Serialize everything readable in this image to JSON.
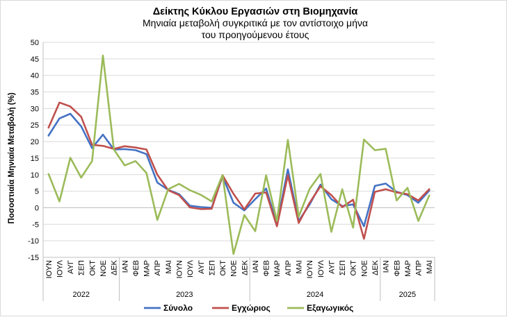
{
  "chart_data": {
    "type": "line",
    "title": "Δείκτης Κύκλου Εργασιών στη Βιομηχανία",
    "subtitle_lines": [
      "Μηνιαία μεταβολή συγκριτικά με τον αντίστοιχο μήνα",
      "του προηγούμενου έτους"
    ],
    "ylabel": "Ποσοστιαία Μηνιαία Μεταβολή (%)",
    "ylim": [
      -15,
      50
    ],
    "yticks": [
      "-15",
      "-10",
      "-5",
      "0",
      "5",
      "10",
      "15",
      "20",
      "25",
      "30",
      "35",
      "40",
      "45",
      "50"
    ],
    "grid": true,
    "legend_position": "bottom",
    "categories": [
      "ΙΟΥΝ",
      "ΙΟΥΛ",
      "ΑΥΓ",
      "ΣΕΠ",
      "ΟΚΤ",
      "ΝΟΕ",
      "ΔΕΚ",
      "ΙΑΝ",
      "ΦΕΒ",
      "ΜΑΡ",
      "ΑΠΡ",
      "ΜΑΙ",
      "ΙΟΥΝ",
      "ΙΟΥΛ",
      "ΑΥΓ",
      "ΣΕΠ",
      "ΟΚΤ",
      "ΝΟΕ",
      "ΔΕΚ",
      "ΙΑΝ",
      "ΦΕΒ",
      "ΜΑΡ",
      "ΑΠΡ",
      "ΜΑΙ",
      "ΙΟΥΝ",
      "ΙΟΥΛ",
      "ΑΥΓ",
      "ΣΕΠ",
      "ΟΚΤ",
      "ΝΟΕ",
      "ΔΕΚ",
      "ΙΑΝ",
      "ΦΕΒ",
      "ΜΑΡ",
      "ΑΠΡ",
      "ΜΑΙ"
    ],
    "years": [
      {
        "label": "2022",
        "count": 7
      },
      {
        "label": "2023",
        "count": 12
      },
      {
        "label": "2024",
        "count": 12
      },
      {
        "label": "2025",
        "count": 5
      }
    ],
    "series": [
      {
        "name": "Σύνολο",
        "color": "#4472c4",
        "values": [
          21.8,
          27.0,
          28.4,
          24.6,
          18.0,
          22.1,
          17.6,
          17.7,
          17.4,
          16.2,
          7.6,
          5.4,
          4.1,
          0.6,
          0.2,
          0.0,
          9.5,
          1.5,
          -0.8,
          2.6,
          5.8,
          -5.0,
          11.6,
          -4.0,
          1.0,
          7.0,
          2.6,
          0.5,
          1.0,
          -5.6,
          6.6,
          7.3,
          4.8,
          3.8,
          1.5,
          5.2
        ]
      },
      {
        "name": "Εγχώριος",
        "color": "#c0504d",
        "values": [
          24.2,
          31.8,
          30.6,
          27.5,
          19.0,
          18.7,
          17.8,
          18.6,
          18.2,
          17.6,
          10.0,
          5.3,
          3.8,
          0.1,
          -0.4,
          -0.3,
          9.8,
          4.2,
          -0.5,
          4.3,
          4.6,
          -5.6,
          9.8,
          -4.6,
          1.5,
          6.5,
          3.8,
          0.2,
          2.4,
          -9.4,
          4.8,
          5.6,
          4.6,
          4.1,
          2.2,
          5.6
        ]
      },
      {
        "name": "Εξαγωγικός",
        "color": "#9bbb59",
        "values": [
          10.2,
          1.9,
          15.1,
          9.1,
          14.1,
          46.0,
          17.6,
          12.8,
          14.1,
          10.5,
          -3.7,
          5.6,
          7.2,
          5.3,
          3.9,
          1.9,
          9.9,
          -14.0,
          -2.2,
          -7.1,
          9.8,
          -4.0,
          20.5,
          -2.7,
          5.7,
          10.2,
          -7.3,
          5.6,
          -6.0,
          20.6,
          17.4,
          17.8,
          2.2,
          6.0,
          -4.0,
          3.7
        ]
      }
    ]
  }
}
